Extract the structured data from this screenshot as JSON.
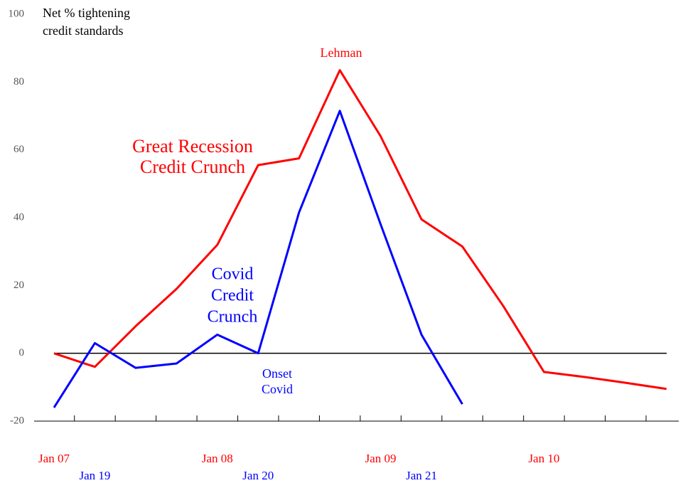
{
  "chart_data": {
    "type": "line",
    "y_axis_label": [
      "Net % tightening",
      "credit standards"
    ],
    "categories": [
      "Jan 07",
      null,
      null,
      null,
      "Jan 08",
      null,
      null,
      null,
      "Jan 09",
      null,
      null,
      null,
      "Jan 10",
      null,
      null,
      null
    ],
    "categories_2": [
      null,
      "Jan 19",
      null,
      null,
      null,
      "Jan 20",
      null,
      null,
      null,
      "Jan 21",
      null,
      null,
      null,
      null,
      null,
      null
    ],
    "series": [
      {
        "name": "Great Recession Credit Crunch",
        "color": "#ff0000",
        "values": [
          0,
          -4,
          8,
          19,
          32,
          55.5,
          57.5,
          83.5,
          64,
          39.5,
          31.5,
          14,
          -5.5,
          -7,
          -8.7,
          -10.5
        ]
      },
      {
        "name": "Covid Credit Crunch",
        "color": "#0000ff",
        "values": [
          -16,
          3,
          -4.3,
          -3,
          5.5,
          0,
          41.5,
          71.5,
          38,
          5.5,
          -15,
          null,
          null,
          null,
          null,
          null
        ]
      }
    ],
    "annotations": [
      {
        "text": [
          "Lehman"
        ],
        "color": "#ff0000"
      },
      {
        "text": [
          "Great Recession",
          "Credit Crunch"
        ],
        "color": "#ff0000"
      },
      {
        "text": [
          "Covid",
          "Credit",
          "Crunch"
        ],
        "color": "#0000ff"
      },
      {
        "text": [
          "Onset",
          "Covid"
        ],
        "color": "#0000ff"
      }
    ],
    "reference_line": 0,
    "ylim": [
      -20,
      100
    ],
    "yticks": [
      -20,
      0,
      20,
      40,
      60,
      80,
      100
    ]
  }
}
